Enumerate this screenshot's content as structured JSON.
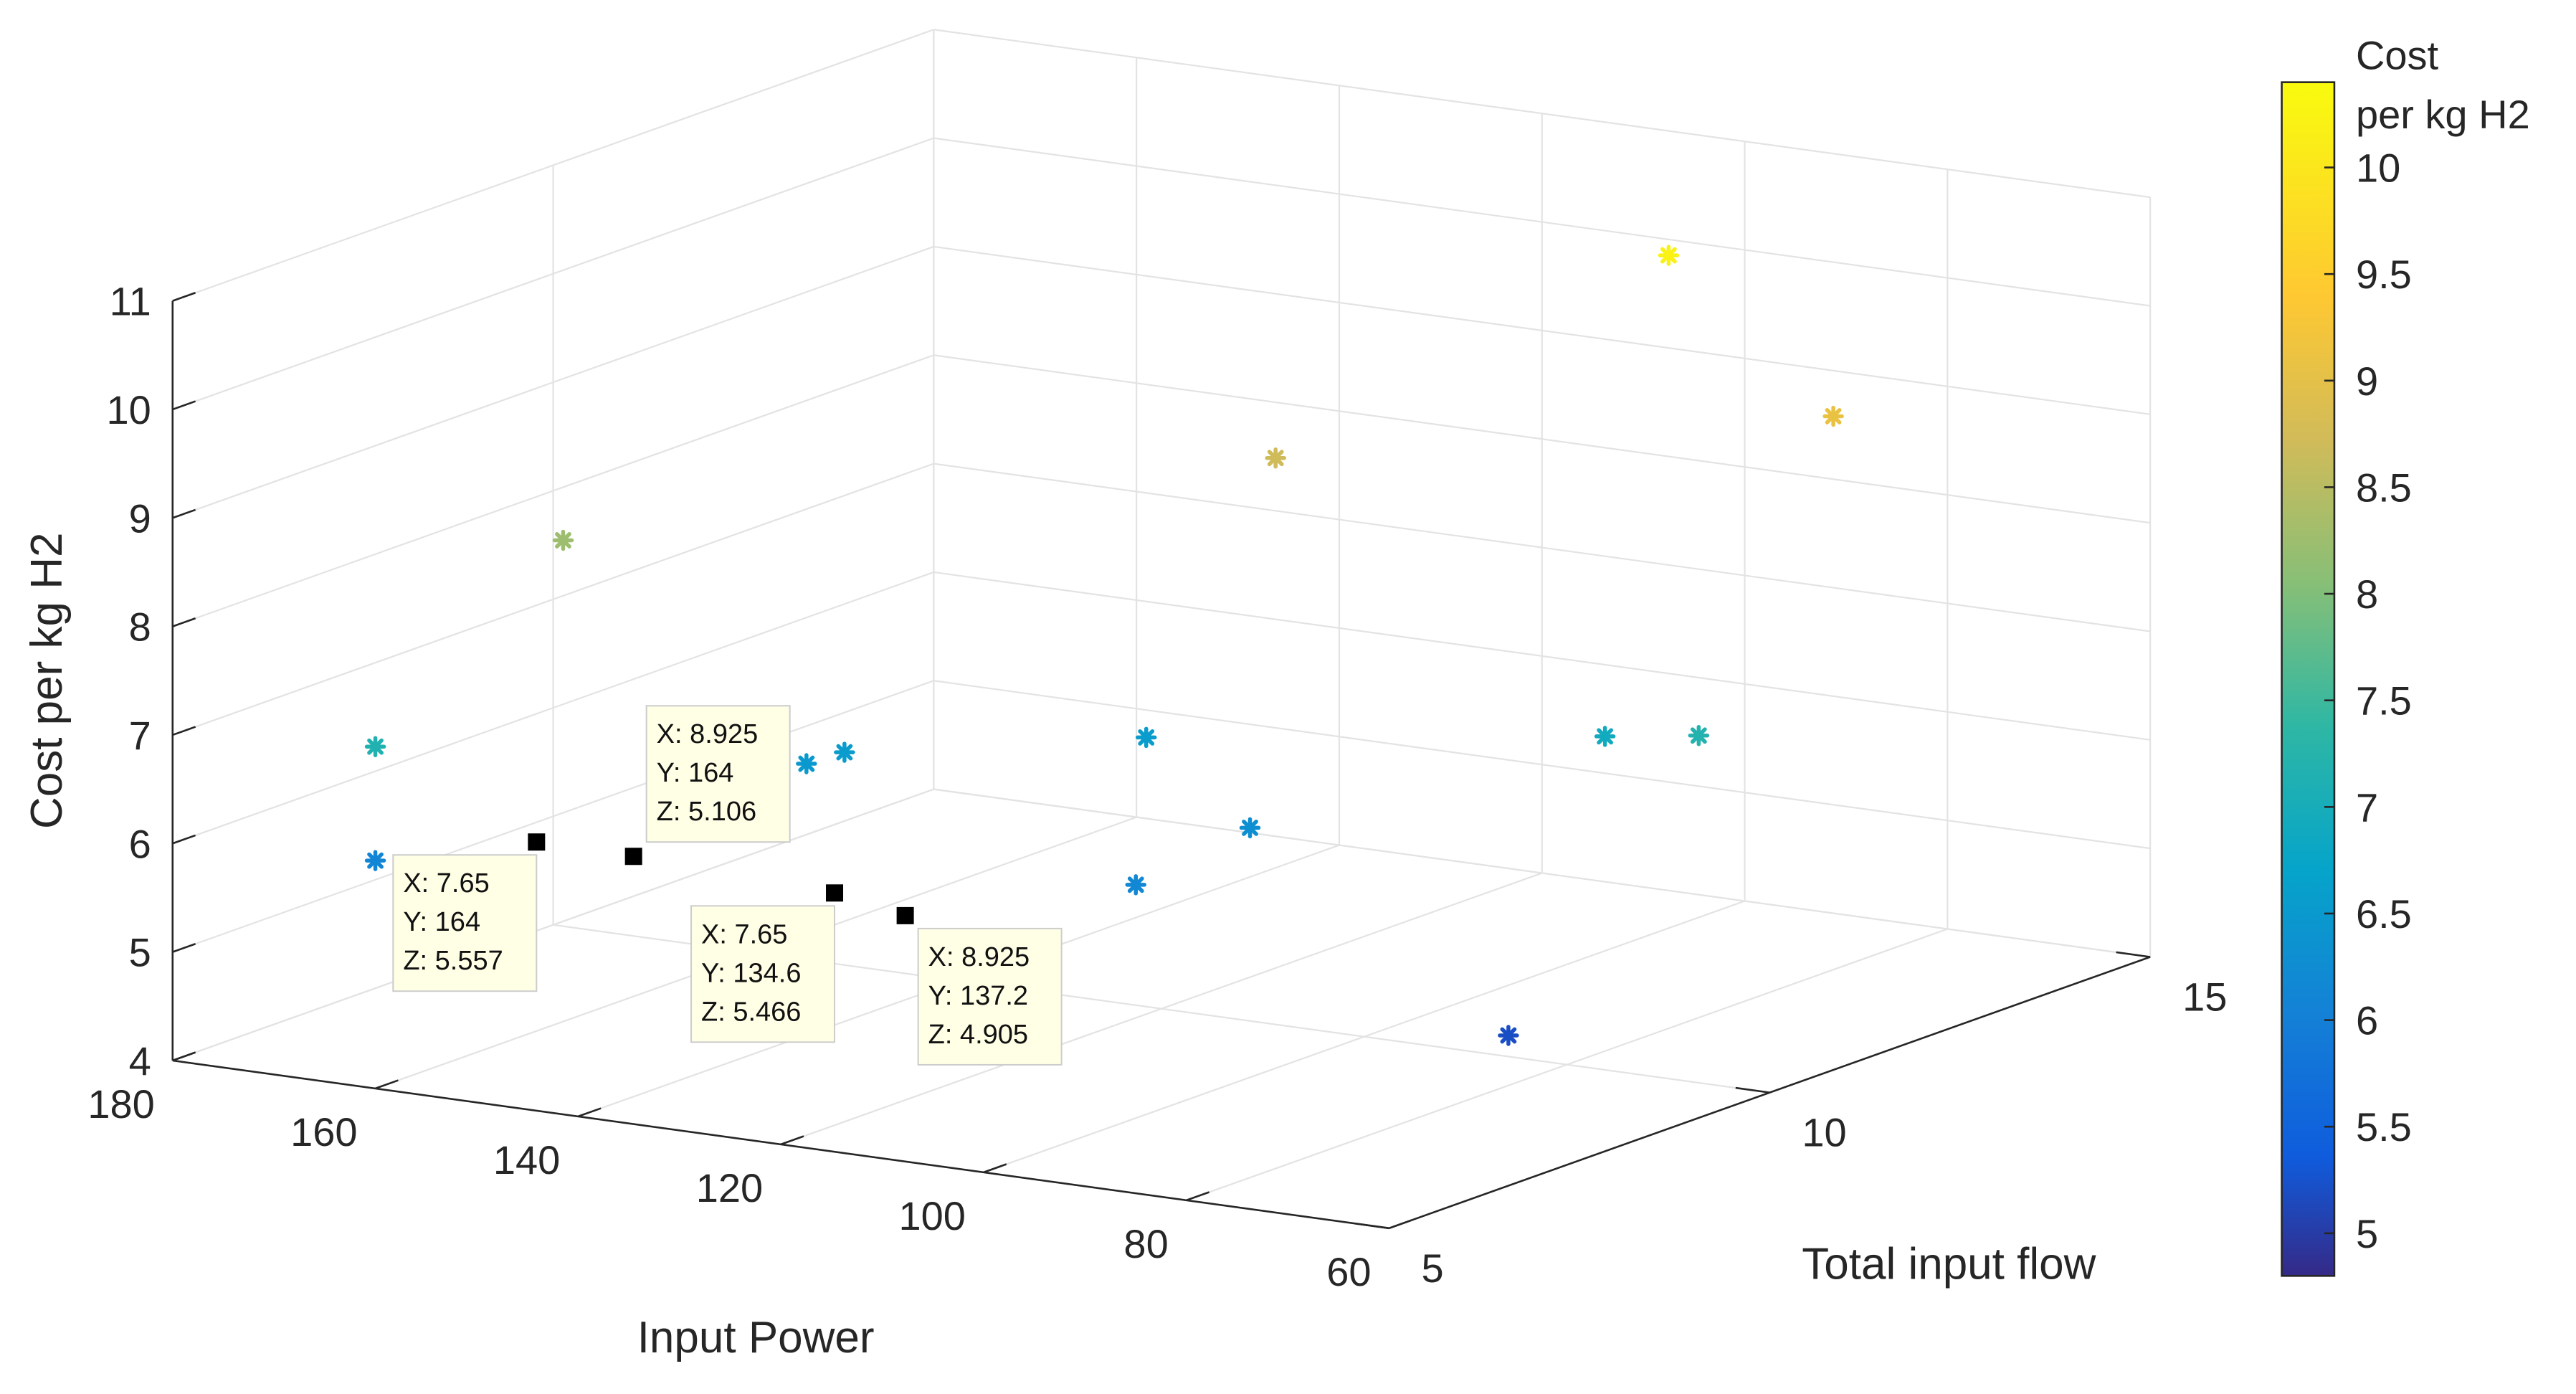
{
  "chart_data": {
    "type": "scatter",
    "projection": "3d",
    "xlabel": "Total input flow",
    "ylabel": "Input Power",
    "zlabel": "Cost per kg H2",
    "xlim": [
      5,
      15
    ],
    "ylim": [
      60,
      180
    ],
    "zlim": [
      4,
      11
    ],
    "x_ticks": [
      "5",
      "10",
      "15"
    ],
    "y_ticks": [
      "60",
      "80",
      "100",
      "120",
      "140",
      "160",
      "180"
    ],
    "z_ticks": [
      "4",
      "5",
      "6",
      "7",
      "8",
      "9",
      "10",
      "11"
    ],
    "grid": true,
    "marker": "asterisk",
    "colorbar": {
      "title": "Cost\nper kg H2",
      "title_lines": [
        "Cost",
        "per kg H2"
      ],
      "min": 4.8,
      "max": 10.4,
      "ticks": [
        "5",
        "5.5",
        "6",
        "6.5",
        "7",
        "7.5",
        "8",
        "8.5",
        "9",
        "9.5",
        "10"
      ],
      "colormap": "parula"
    },
    "points": [
      {
        "x": 5.0,
        "y": 160,
        "z": 7.15
      },
      {
        "x": 5.0,
        "y": 160,
        "z": 6.1
      },
      {
        "x": 8.0,
        "y": 164,
        "z": 8.25
      },
      {
        "x": 8.3,
        "y": 138.5,
        "z": 6.55
      },
      {
        "x": 8.0,
        "y": 140,
        "z": 6.5
      },
      {
        "x": 9.8,
        "y": 120,
        "z": 6.55
      },
      {
        "x": 11.5,
        "y": 120,
        "z": 8.7
      },
      {
        "x": 7.0,
        "y": 100,
        "z": 6.15
      },
      {
        "x": 8.5,
        "y": 100,
        "z": 6.3
      },
      {
        "x": 14.0,
        "y": 100,
        "z": 10.2
      },
      {
        "x": 10.5,
        "y": 80,
        "z": 6.9
      },
      {
        "x": 13.5,
        "y": 80,
        "z": 9.1
      },
      {
        "x": 7.1,
        "y": 64,
        "z": 5.2
      },
      {
        "x": 10.0,
        "y": 67,
        "z": 7.2
      }
    ],
    "highlighted_points": [
      {
        "x": 7.65,
        "y": 164,
        "z": 5.557,
        "label_x": "X: 7.65",
        "label_y": "Y: 164",
        "label_z": "Z: 5.557",
        "box": "below-left"
      },
      {
        "x": 8.925,
        "y": 164,
        "z": 5.106,
        "label_x": "X: 8.925",
        "label_y": "Y: 164",
        "label_z": "Z: 5.106",
        "box": "above-right"
      },
      {
        "x": 7.65,
        "y": 134.6,
        "z": 5.466,
        "label_x": "X: 7.65",
        "label_y": "Y: 134.6",
        "label_z": "Z: 5.466",
        "box": "below-left"
      },
      {
        "x": 8.925,
        "y": 137.2,
        "z": 4.905,
        "label_x": "X: 8.925",
        "label_y": "Y: 137.2",
        "label_z": "Z: 4.905",
        "box": "below-right"
      }
    ]
  }
}
